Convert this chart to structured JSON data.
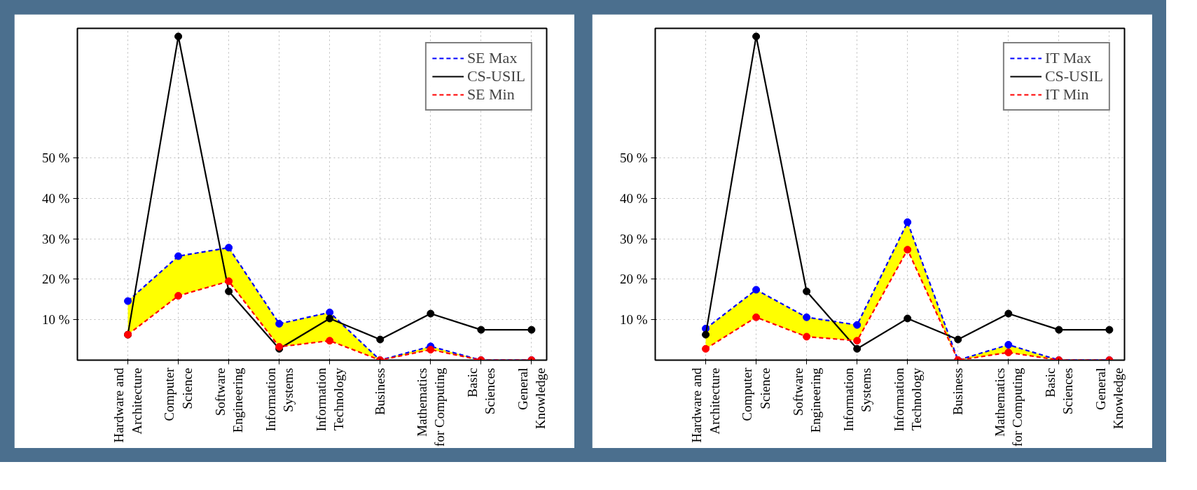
{
  "chart_data": [
    {
      "type": "line",
      "categories": [
        "Hardware and\nArchitecture",
        "Computer\nScience",
        "Software\nEngineering",
        "Information\nSystems",
        "Information\nTechnology",
        "Business",
        "Mathematics\nfor Computing",
        "Basic\nSciences",
        "General\nKnowledge"
      ],
      "series": [
        {
          "name": "SE Max",
          "color": "#0000ff",
          "line_style": "dashed",
          "values": [
            14.6,
            25.7,
            27.8,
            9.0,
            11.8,
            0,
            3.4,
            0,
            0
          ],
          "lower": [
            6.3,
            15.9,
            19.5,
            3.3,
            4.8,
            0,
            2.6,
            0,
            0
          ],
          "upper": [
            14.6,
            25.7,
            27.8,
            9.0,
            11.8,
            0,
            3.4,
            0,
            0
          ]
        },
        {
          "name": "CS-USIL",
          "color": "#000000",
          "line_style": "solid",
          "values": [
            6.3,
            80,
            17.0,
            2.8,
            10.3,
            5.1,
            11.5,
            7.5,
            7.5
          ]
        },
        {
          "name": "SE Min",
          "color": "#ff0000",
          "line_style": "dashed",
          "values": [
            6.3,
            15.9,
            19.5,
            3.3,
            4.8,
            0,
            2.6,
            0,
            0
          ]
        }
      ],
      "ylim": [
        0,
        82
      ],
      "yticks": [
        {
          "value": 10,
          "label": "10 %"
        },
        {
          "value": 20,
          "label": "20 %"
        },
        {
          "value": 30,
          "label": "30 %"
        },
        {
          "value": 40,
          "label": "40 %"
        },
        {
          "value": 50,
          "label": "50 %"
        }
      ],
      "grid": true,
      "legend": "top right",
      "marker": "circle"
    },
    {
      "type": "line",
      "categories": [
        "Hardware and\nArchitecture",
        "Computer\nScience",
        "Software\nEngineering",
        "Information\nSystems",
        "Information\nTechnology",
        "Business",
        "Mathematics\nfor Computing",
        "Basic\nSciences",
        "General\nKnowledge"
      ],
      "series": [
        {
          "name": "IT Max",
          "color": "#0000ff",
          "line_style": "dashed",
          "values": [
            7.8,
            17.4,
            10.6,
            8.7,
            34.1,
            0,
            3.8,
            0,
            0
          ],
          "lower": [
            2.8,
            10.6,
            5.8,
            4.8,
            27.3,
            0,
            1.9,
            0,
            0
          ],
          "upper": [
            7.8,
            17.4,
            10.6,
            8.7,
            34.1,
            0,
            3.8,
            0,
            0
          ]
        },
        {
          "name": "CS-USIL",
          "color": "#000000",
          "line_style": "solid",
          "values": [
            6.3,
            80,
            17.0,
            2.8,
            10.3,
            5.1,
            11.5,
            7.5,
            7.5
          ]
        },
        {
          "name": "IT Min",
          "color": "#ff0000",
          "line_style": "dashed",
          "values": [
            2.8,
            10.6,
            5.8,
            4.8,
            27.3,
            0,
            1.9,
            0,
            0
          ]
        }
      ],
      "ylim": [
        0,
        82
      ],
      "yticks": [
        {
          "value": 10,
          "label": "10 %"
        },
        {
          "value": 20,
          "label": "20 %"
        },
        {
          "value": 30,
          "label": "30 %"
        },
        {
          "value": 40,
          "label": "40 %"
        },
        {
          "value": 50,
          "label": "50 %"
        }
      ],
      "grid": true,
      "legend": "top right",
      "marker": "circle"
    }
  ]
}
